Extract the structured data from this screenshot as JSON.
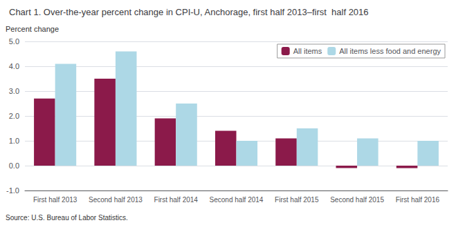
{
  "chart_data": {
    "type": "bar",
    "title": "Chart 1. Over-the-year percent change in CPI-U, Anchorage, first half 2013–first  half 2016",
    "ylabel": "Percent change",
    "source": "Source: U.S. Bureau of Labor Statistics.",
    "categories": [
      "First half 2013",
      "Second half 2013",
      "First half 2014",
      "Second half 2014",
      "First half 2015",
      "Second half 2015",
      "First half 2016"
    ],
    "series": [
      {
        "name": "All items",
        "color": "#8B1A4A",
        "values": [
          2.7,
          3.5,
          1.9,
          1.4,
          1.1,
          -0.1,
          -0.1
        ]
      },
      {
        "name": "All items less food and energy",
        "color": "#ADD8E6",
        "values": [
          4.1,
          4.6,
          2.5,
          1.0,
          1.5,
          1.1,
          1.0
        ]
      }
    ],
    "ylim": [
      -1.0,
      5.0
    ],
    "yticks": [
      {
        "value": -1.0,
        "label": "-1.0"
      },
      {
        "value": 0.0,
        "label": "0.0"
      },
      {
        "value": 1.0,
        "label": "1.0"
      },
      {
        "value": 2.0,
        "label": "2.0"
      },
      {
        "value": 3.0,
        "label": "3.0"
      },
      {
        "value": 4.0,
        "label": "4.0"
      },
      {
        "value": 5.0,
        "label": "5.0"
      }
    ],
    "grid": true,
    "legend": "upper right"
  }
}
